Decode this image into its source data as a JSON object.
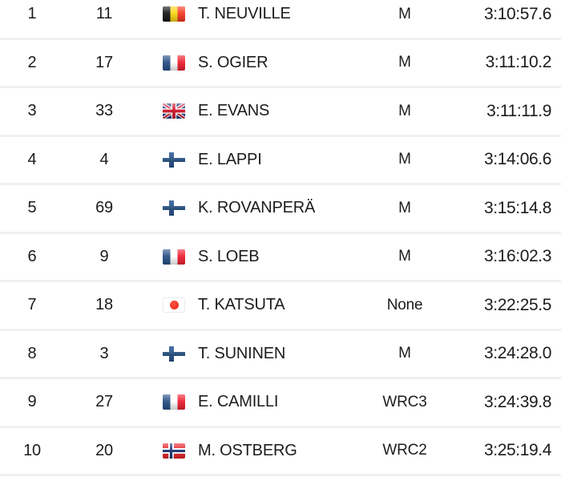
{
  "table": {
    "name": "rally-results",
    "columns": [
      "position",
      "car_number",
      "nationality_flag",
      "driver",
      "class",
      "time"
    ],
    "rows": [
      {
        "position": "1",
        "car_number": "11",
        "flag": "belgium",
        "driver": "T. NEUVILLE",
        "class": "M",
        "time": "3:10:57.6"
      },
      {
        "position": "2",
        "car_number": "17",
        "flag": "france",
        "driver": "S. OGIER",
        "class": "M",
        "time": "3:11:10.2"
      },
      {
        "position": "3",
        "car_number": "33",
        "flag": "united-kingdom",
        "driver": "E. EVANS",
        "class": "M",
        "time": "3:11:11.9"
      },
      {
        "position": "4",
        "car_number": "4",
        "flag": "finland",
        "driver": "E. LAPPI",
        "class": "M",
        "time": "3:14:06.6"
      },
      {
        "position": "5",
        "car_number": "69",
        "flag": "finland",
        "driver": "K. ROVANPERÄ",
        "class": "M",
        "time": "3:15:14.8"
      },
      {
        "position": "6",
        "car_number": "9",
        "flag": "france",
        "driver": "S. LOEB",
        "class": "M",
        "time": "3:16:02.3"
      },
      {
        "position": "7",
        "car_number": "18",
        "flag": "japan",
        "driver": "T. KATSUTA",
        "class": "None",
        "time": "3:22:25.5"
      },
      {
        "position": "8",
        "car_number": "3",
        "flag": "finland",
        "driver": "T. SUNINEN",
        "class": "M",
        "time": "3:24:28.0"
      },
      {
        "position": "9",
        "car_number": "27",
        "flag": "france",
        "driver": "E. CAMILLI",
        "class": "WRC3",
        "time": "3:24:39.8"
      },
      {
        "position": "10",
        "car_number": "20",
        "flag": "norway",
        "driver": "M. OSTBERG",
        "class": "WRC2",
        "time": "3:25:19.4"
      }
    ]
  },
  "colors": {
    "text": "#1c1c1e",
    "row_background": "#ffffff",
    "divider": "#f0f0f3"
  }
}
